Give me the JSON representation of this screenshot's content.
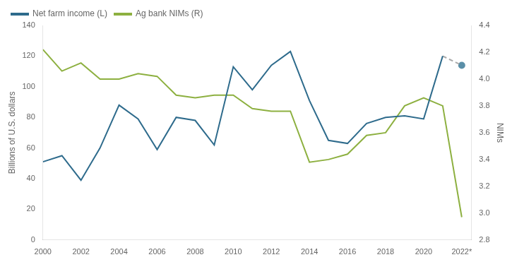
{
  "chart_data": {
    "type": "line",
    "x": [
      2000,
      2001,
      2002,
      2003,
      2004,
      2005,
      2006,
      2007,
      2008,
      2009,
      2010,
      2011,
      2012,
      2013,
      2014,
      2015,
      2016,
      2017,
      2018,
      2019,
      2020,
      2021,
      2022
    ],
    "series": [
      {
        "name": "Net farm income (L)",
        "color": "#2e6b8c",
        "line_style": "solid",
        "axis": "y",
        "values": [
          51,
          55,
          39,
          60,
          88,
          79,
          59,
          80,
          78,
          62,
          113,
          98,
          114,
          123,
          91,
          65,
          63,
          76,
          80,
          81,
          79,
          120,
          null
        ]
      },
      {
        "color": "#aaaaaa",
        "line_style": "dashed",
        "axis": "y",
        "values": [
          null,
          null,
          null,
          null,
          null,
          null,
          null,
          null,
          null,
          null,
          null,
          null,
          null,
          null,
          null,
          null,
          null,
          null,
          null,
          null,
          null,
          120,
          114
        ]
      },
      {
        "color": "#5a8fa8",
        "line_style": "none",
        "marker": "circle",
        "axis": "y",
        "values": [
          null,
          null,
          null,
          null,
          null,
          null,
          null,
          null,
          null,
          null,
          null,
          null,
          null,
          null,
          null,
          null,
          null,
          null,
          null,
          null,
          null,
          null,
          114
        ]
      },
      {
        "name": "Ag bank NIMs (R)",
        "color": "#8db040",
        "line_style": "solid",
        "axis": "y2",
        "values": [
          4.22,
          4.06,
          4.12,
          4.0,
          4.0,
          4.04,
          4.02,
          3.88,
          3.86,
          3.88,
          3.88,
          3.78,
          3.76,
          3.76,
          3.38,
          3.4,
          3.44,
          3.58,
          3.6,
          3.8,
          3.86,
          3.8,
          2.97
        ]
      }
    ],
    "ylabel": "Billions of U.S. dollars",
    "y2label": "NIMs",
    "xlim": [
      2000,
      2022.5
    ],
    "xticks": [
      2000,
      2002,
      2004,
      2006,
      2008,
      2010,
      2012,
      2014,
      2016,
      2018,
      2020,
      {
        "value": 2022,
        "label": "2022*"
      }
    ],
    "ylim": [
      0,
      140
    ],
    "yticks": [
      0,
      20,
      40,
      60,
      80,
      100,
      120,
      140
    ],
    "y2lim": [
      2.8,
      4.4
    ],
    "y2ticks": [
      2.8,
      {
        "value": 3.0,
        "label": "3.0"
      },
      3.2,
      3.4,
      3.6,
      3.8,
      {
        "value": 4.0,
        "label": "4.0"
      },
      4.2,
      4.4
    ],
    "grid": false,
    "legend": "upper left"
  }
}
